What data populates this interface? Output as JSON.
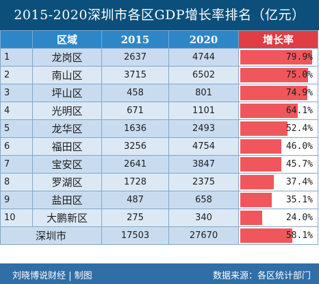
{
  "title": "2015-2020深圳市各区GDP增长率排名（亿元）",
  "headers": {
    "rank": "",
    "district": "区域",
    "y2015": "2015",
    "y2020": "2020",
    "growth": "增长率"
  },
  "rows": [
    {
      "rank": "1",
      "district": "龙岗区",
      "y2015": "2637",
      "y2020": "4744",
      "growth": "79.9%",
      "growth_value": 79.9
    },
    {
      "rank": "2",
      "district": "南山区",
      "y2015": "3715",
      "y2020": "6502",
      "growth": "75.0%",
      "growth_value": 75.0
    },
    {
      "rank": "3",
      "district": "坪山区",
      "y2015": "458",
      "y2020": "801",
      "growth": "74.9%",
      "growth_value": 74.9
    },
    {
      "rank": "4",
      "district": "光明区",
      "y2015": "671",
      "y2020": "1101",
      "growth": "64.1%",
      "growth_value": 64.1
    },
    {
      "rank": "5",
      "district": "龙华区",
      "y2015": "1636",
      "y2020": "2493",
      "growth": "52.4%",
      "growth_value": 52.4
    },
    {
      "rank": "6",
      "district": "福田区",
      "y2015": "3256",
      "y2020": "4754",
      "growth": "46.0%",
      "growth_value": 46.0
    },
    {
      "rank": "7",
      "district": "宝安区",
      "y2015": "2641",
      "y2020": "3847",
      "growth": "45.7%",
      "growth_value": 45.7
    },
    {
      "rank": "8",
      "district": "罗湖区",
      "y2015": "1728",
      "y2020": "2375",
      "growth": "37.4%",
      "growth_value": 37.4
    },
    {
      "rank": "9",
      "district": "盐田区",
      "y2015": "487",
      "y2020": "658",
      "growth": "35.1%",
      "growth_value": 35.1
    },
    {
      "rank": "10",
      "district": "大鹏新区",
      "y2015": "275",
      "y2020": "340",
      "growth": "24.0%",
      "growth_value": 24.0
    }
  ],
  "total": {
    "district": "深圳市",
    "y2015": "17503",
    "y2020": "27670",
    "growth": "58.1%",
    "growth_value": 58.1
  },
  "growth_max": 79.9,
  "footer": {
    "left": "刘晓博说财经 | 制图",
    "right": "数据来源：各区统计部门"
  },
  "colors": {
    "title_bg": "#0b4f7a",
    "header_bg": "#2f86c6",
    "growth_header_bg": "#e03d44",
    "bar": "#f0575c",
    "row_a": "#c9dcef",
    "row_b": "#dce9f5",
    "footer_bg": "#2f6ea6"
  }
}
